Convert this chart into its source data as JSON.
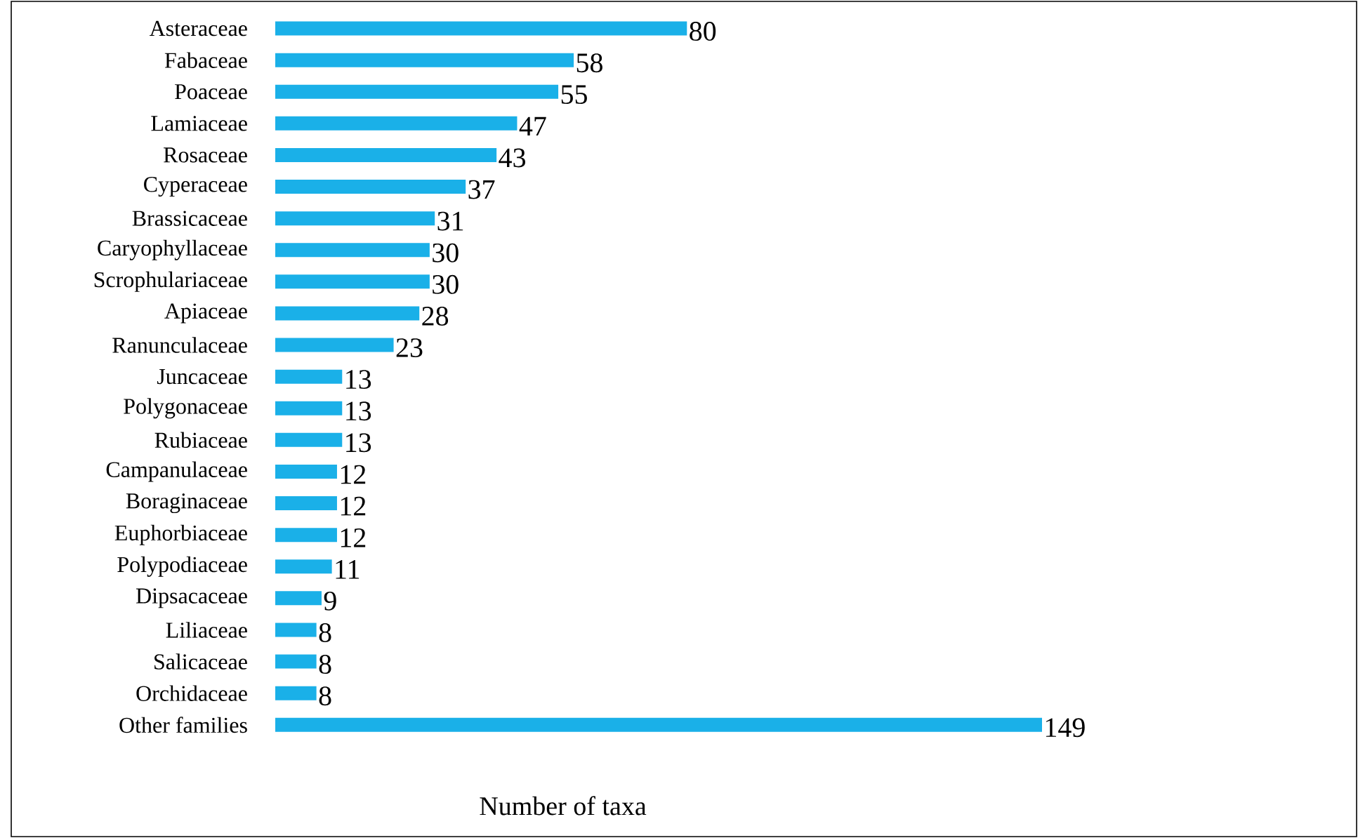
{
  "chart_data": {
    "type": "bar",
    "orientation": "horizontal",
    "xlabel": "Number of taxa",
    "categories": [
      "Asteraceae",
      "Fabaceae",
      "Poaceae",
      "Lamiaceae",
      "Rosaceae",
      "Cyperaceae",
      "Brassicaceae",
      "Caryophyllaceae",
      "Scrophulariaceae",
      "Apiaceae",
      "Ranunculaceae",
      "Juncaceae",
      "Polygonaceae",
      "Rubiaceae",
      "Campanulaceae",
      "Boraginaceae",
      "Euphorbiaceae",
      "Polypodiaceae",
      "Dipsacaceae",
      "Liliaceae",
      "Salicaceae",
      "Orchidaceae",
      "Other families"
    ],
    "values": [
      80,
      58,
      55,
      47,
      43,
      37,
      31,
      30,
      30,
      28,
      23,
      13,
      13,
      13,
      12,
      12,
      12,
      11,
      9,
      8,
      8,
      8,
      149
    ],
    "color": "#1ab0e8",
    "data_labels": true
  }
}
